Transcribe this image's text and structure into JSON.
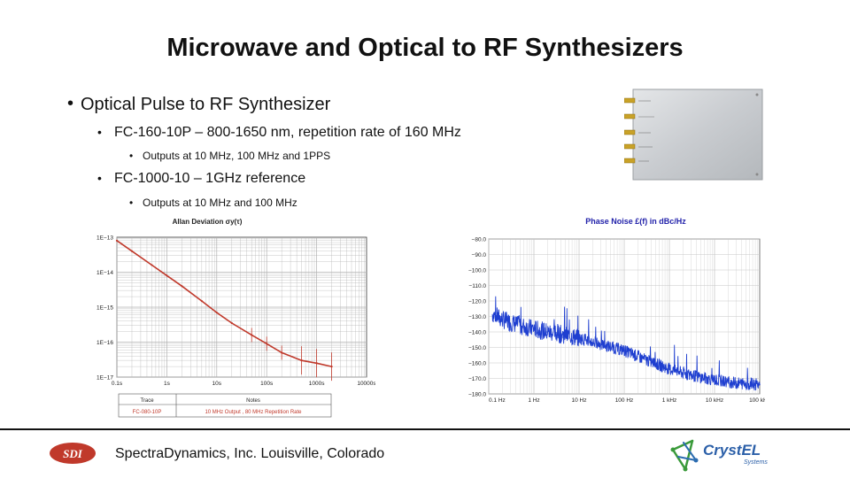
{
  "slide": {
    "title": "Microwave and Optical to RF Synthesizers",
    "bullet1": "Optical Pulse to RF Synthesizer",
    "bullet2a": "FC-160-10P – 800-1650 nm, repetition rate of 160 MHz",
    "bullet3a": "Outputs at 10 MHz, 100 MHz and 1PPS",
    "bullet2b": "FC-1000-10 – 1GHz reference",
    "bullet3b": "Outputs at 10 MHz and 100 MHz",
    "bullet_symbol": "•"
  },
  "footer": {
    "text": "SpectraDynamics, Inc. Louisville, Colorado",
    "sdi_logo_text": "SDI",
    "crystel_logo_text": "CrystEL",
    "crystel_logo_sub": "Systems"
  },
  "allan_legend": {
    "col1": "Trace",
    "col2": "Notes",
    "row1_trace": "FC-080-10P",
    "row1_notes": "10 MHz Output , 80 MHz Repetition Rate"
  },
  "colors": {
    "allan_trace": "#c0392b",
    "allan_grid": "#b0b0b0",
    "phase_trace": "#1f3fd0",
    "phase_grid": "#c8c8c8",
    "phase_title": "#2222aa"
  },
  "chart_data": [
    {
      "type": "line",
      "title": "Allan Deviation σy(τ)",
      "x_scale": "log",
      "y_scale": "log",
      "x_ticks": [
        "0.1s",
        "1s",
        "10s",
        "100s",
        "1000s",
        "10000s"
      ],
      "y_ticks": [
        "1E−13",
        "1E−14",
        "1E−15",
        "1E−16",
        "1E−17"
      ],
      "xlim": [
        0.1,
        10000
      ],
      "ylim": [
        1e-17,
        1e-13
      ],
      "grid": true,
      "series": [
        {
          "name": "FC-080-10P",
          "x": [
            0.1,
            0.2,
            0.5,
            1,
            2,
            5,
            10,
            20,
            50,
            100,
            200,
            500,
            1000,
            2000
          ],
          "y": [
            8e-14,
            4e-14,
            1.6e-14,
            8e-15,
            4e-15,
            1.5e-15,
            7e-16,
            3.5e-16,
            1.6e-16,
            9e-17,
            5e-17,
            3e-17,
            2.5e-17,
            2e-17
          ]
        }
      ]
    },
    {
      "type": "line",
      "title": "Phase Noise £(f) in dBc/Hz",
      "x_scale": "log",
      "x_ticks": [
        "0.1 Hz",
        "1 Hz",
        "10 Hz",
        "100 Hz",
        "1 kHz",
        "10 kHz",
        "100 kHz"
      ],
      "y_ticks": [
        "−80.0",
        "−90.0",
        "−100.0",
        "−110.0",
        "−120.0",
        "−130.0",
        "−140.0",
        "−150.0",
        "−160.0",
        "−170.0",
        "−180.0"
      ],
      "xlim": [
        0.1,
        100000
      ],
      "ylim": [
        -180,
        -80
      ],
      "grid": true,
      "series": [
        {
          "x": [
            0.1,
            0.2,
            0.5,
            1,
            2,
            5,
            10,
            30,
            100,
            300,
            1000,
            3000,
            10000,
            30000,
            100000
          ],
          "y": [
            -127,
            -132,
            -136,
            -138,
            -140,
            -142,
            -144,
            -148,
            -152,
            -158,
            -164,
            -168,
            -171,
            -173,
            -174
          ]
        }
      ]
    }
  ]
}
